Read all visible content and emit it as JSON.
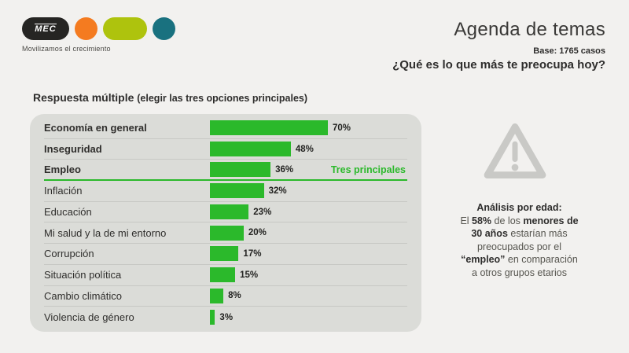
{
  "header": {
    "logo_text": "MEC",
    "tagline": "Movilizamos el crecimiento",
    "title": "Agenda de temas",
    "base": "Base: 1765 casos",
    "question": "¿Qué es lo que más te preocupa hoy?"
  },
  "subtitle": {
    "main": "Respuesta múltiple",
    "paren": "(elegir las tres opciones principales)"
  },
  "chart_data": {
    "type": "bar",
    "orientation": "horizontal",
    "title": "¿Qué es lo que más te preocupa hoy?",
    "categories": [
      "Economía en general",
      "Inseguridad",
      "Empleo",
      "Inflación",
      "Educación",
      "Mi salud y la de mi entorno",
      "Corrupción",
      "Situación política",
      "Cambio climático",
      "Violencia de género"
    ],
    "values": [
      70,
      48,
      36,
      32,
      23,
      20,
      17,
      15,
      8,
      3
    ],
    "unit": "%",
    "xlim": [
      0,
      100
    ],
    "highlight_top": 3,
    "annotation": "Tres principales"
  },
  "analysis": {
    "title": "Análisis por edad:",
    "segments": [
      {
        "text": "El ",
        "bold": false
      },
      {
        "text": "58%",
        "bold": true
      },
      {
        "text": " de los ",
        "bold": false
      },
      {
        "text": "menores de 30 años",
        "bold": true
      },
      {
        "text": " estarían más preocupados por el ",
        "bold": false
      },
      {
        "text": "“empleo”",
        "bold": true
      },
      {
        "text": " en comparación a otros grupos etarios",
        "bold": false
      }
    ]
  },
  "colors": {
    "page_bg": "#f2f1ef",
    "panel_bg": "#dbdcd8",
    "bar_green": "#2bb92b",
    "divider": "#c7c8c4",
    "text_dark": "#2e2d2c",
    "text_gray": "#56554f",
    "triangle_gray": "#c9c9c6",
    "logo_dark": "#262523",
    "logo_orange": "#f47b20",
    "logo_chartreuse": "#aec30d",
    "logo_teal": "#19717f"
  }
}
